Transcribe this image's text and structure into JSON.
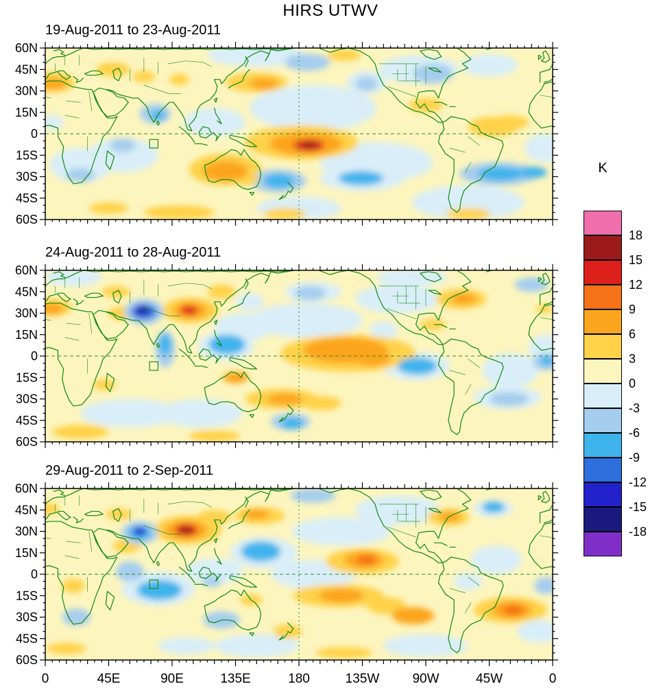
{
  "title": "HIRS UTWV",
  "panels": [
    {
      "subtitle": "19-Aug-2011 to 23-Aug-2011"
    },
    {
      "subtitle": "24-Aug-2011 to 28-Aug-2011"
    },
    {
      "subtitle": "29-Aug-2011 to 2-Sep-2011"
    }
  ],
  "axes": {
    "lat_labels": [
      "60N",
      "45N",
      "30N",
      "15N",
      "0",
      "15S",
      "30S",
      "45S",
      "60S"
    ],
    "lon_labels": [
      "0",
      "45E",
      "90E",
      "135E",
      "180",
      "135W",
      "90W",
      "45W",
      "0"
    ]
  },
  "colorbar": {
    "title": "K",
    "tick_labels": [
      "18",
      "15",
      "12",
      "9",
      "6",
      "3",
      "0",
      "-3",
      "-6",
      "-9",
      "-12",
      "-15",
      "-18"
    ],
    "colors_top_to_bottom": [
      "#F06EAC",
      "#9B1B1B",
      "#DC1F1A",
      "#F57219",
      "#FCA51F",
      "#FFD24A",
      "#FCF5BE",
      "#D9EEF8",
      "#A5CDEE",
      "#3FB4EC",
      "#2D6FDC",
      "#2222CC",
      "#1A1A7E",
      "#7F2FC8"
    ]
  },
  "chart_data": {
    "type": "heatmap",
    "title": "HIRS UTWV",
    "units": "K",
    "description": "Three 5-day mean global maps of HIRS upper-tropospheric water vapor brightness temperature anomaly (K), 60S-60N, longitude 0-360 starting at Greenwich, filled contours every 3 K from -18 to 18 with green coastlines, dashed equator and dateline reference lines, and a small outlined study box near 77E just south of the equator.",
    "lat_range": [
      -60,
      60
    ],
    "lon_range": [
      0,
      360
    ],
    "levels": [
      -18,
      -15,
      -12,
      -9,
      -6,
      -3,
      0,
      3,
      6,
      9,
      12,
      15,
      18
    ],
    "map_style": {
      "base_color": "#FCF5BE",
      "coastline_color": "#108910",
      "grid_line_color": "#2E8B2E",
      "frame_color": "#000000"
    },
    "panels": [
      {
        "subtitle": "19-Aug-2011 to 23-Aug-2011",
        "feature_note": "Strong positive anomaly (>12K) near 187E,8S; negative bands in S Pacific and S Atlantic near 30S; orange over Australia and NW Africa.",
        "anomaly_features": [
          [
            190,
            18,
            45,
            16,
            -2.5
          ],
          [
            235,
            -20,
            40,
            14,
            -2.5
          ],
          [
            300,
            -48,
            40,
            12,
            -2.5
          ],
          [
            150,
            55,
            35,
            8,
            -2.5
          ],
          [
            265,
            45,
            28,
            10,
            -2.5
          ],
          [
            315,
            48,
            20,
            8,
            -2.5
          ],
          [
            55,
            -15,
            25,
            12,
            -2.5
          ],
          [
            25,
            -22,
            22,
            12,
            -2.5
          ],
          [
            120,
            8,
            22,
            10,
            -2.5
          ],
          [
            355,
            -10,
            15,
            10,
            -2.5
          ],
          [
            180,
            -52,
            30,
            8,
            -2.5
          ],
          [
            5,
            36,
            16,
            7,
            4
          ],
          [
            6,
            35,
            9,
            4,
            7
          ],
          [
            48,
            45,
            12,
            5,
            4
          ],
          [
            70,
            40,
            8,
            4,
            5
          ],
          [
            95,
            38,
            7,
            4,
            4
          ],
          [
            150,
            36,
            22,
            7,
            4
          ],
          [
            155,
            35,
            10,
            4,
            7
          ],
          [
            182,
            -6,
            40,
            12,
            4
          ],
          [
            185,
            -7,
            26,
            8,
            8
          ],
          [
            187,
            -8,
            11,
            4,
            13
          ],
          [
            188,
            -8,
            6,
            2.5,
            16
          ],
          [
            128,
            -25,
            26,
            11,
            4
          ],
          [
            128,
            -26,
            16,
            7,
            7
          ],
          [
            142,
            -32,
            10,
            4,
            5
          ],
          [
            330,
            8,
            13,
            5,
            5
          ],
          [
            318,
            5,
            18,
            7,
            4
          ],
          [
            270,
            20,
            12,
            5,
            4
          ],
          [
            212,
            55,
            12,
            4,
            4
          ],
          [
            95,
            -55,
            25,
            5,
            5
          ],
          [
            170,
            -56,
            15,
            4,
            4
          ],
          [
            300,
            -56,
            16,
            4,
            4
          ],
          [
            45,
            -52,
            14,
            4,
            4
          ],
          [
            78,
            14,
            11,
            7,
            -4
          ],
          [
            80,
            13,
            5,
            3.5,
            -7
          ],
          [
            165,
            -33,
            20,
            8,
            -4
          ],
          [
            166,
            -33,
            11,
            5,
            -8
          ],
          [
            225,
            -31,
            30,
            9,
            -2.5
          ],
          [
            224,
            -31,
            16,
            5,
            -7
          ],
          [
            322,
            -28,
            28,
            8,
            -4
          ],
          [
            323,
            -28,
            16,
            5,
            -8
          ],
          [
            346,
            -27,
            10,
            4,
            -6.5
          ],
          [
            275,
            42,
            14,
            7,
            -4
          ],
          [
            228,
            36,
            14,
            8,
            -2.5
          ],
          [
            228,
            35,
            8,
            5,
            -5
          ],
          [
            186,
            50,
            16,
            6,
            -4
          ],
          [
            25,
            -29,
            10,
            5,
            -4
          ],
          [
            55,
            -8,
            9,
            5,
            -4
          ],
          [
            5,
            8,
            8,
            5,
            -2.5
          ]
        ]
      },
      {
        "subtitle": "24-Aug-2011 to 28-Aug-2011",
        "feature_note": "Strong dipole over S Asia: deep negative (<-15K) near 69E,32N and strong positive (>12K) near 102E,32N; orange band along equatorial central Pacific.",
        "anomaly_features": [
          [
            185,
            25,
            40,
            12,
            -2.5
          ],
          [
            330,
            -10,
            20,
            12,
            -2.5
          ],
          [
            60,
            -40,
            35,
            10,
            -2.5
          ],
          [
            110,
            -40,
            30,
            10,
            -2.5
          ],
          [
            140,
            20,
            20,
            10,
            -2.5
          ],
          [
            355,
            5,
            12,
            10,
            -2.5
          ],
          [
            260,
            55,
            25,
            6,
            -2.5
          ],
          [
            20,
            55,
            20,
            6,
            -2.5
          ],
          [
            250,
            40,
            30,
            10,
            -2.5
          ],
          [
            5,
            34,
            14,
            6,
            4
          ],
          [
            5,
            33,
            8,
            4,
            7
          ],
          [
            354,
            33,
            6,
            3,
            5
          ],
          [
            50,
            45,
            10,
            4,
            4
          ],
          [
            55,
            30,
            10,
            5,
            4
          ],
          [
            103,
            32,
            20,
            9,
            4
          ],
          [
            103,
            32,
            12,
            6,
            8
          ],
          [
            102,
            32,
            6,
            3.2,
            13
          ],
          [
            125,
            45,
            10,
            5,
            4
          ],
          [
            215,
            2,
            48,
            13,
            4
          ],
          [
            213,
            4,
            30,
            9,
            7
          ],
          [
            207,
            6,
            12,
            6,
            8
          ],
          [
            232,
            -1,
            13,
            6,
            8
          ],
          [
            168,
            -30,
            26,
            7,
            4
          ],
          [
            170,
            -30,
            13,
            4,
            7
          ],
          [
            196,
            -33,
            14,
            5,
            5
          ],
          [
            135,
            -15,
            9,
            4,
            7
          ],
          [
            42,
            -20,
            8,
            4,
            4
          ],
          [
            25,
            -53,
            20,
            5,
            5
          ],
          [
            120,
            -56,
            18,
            4,
            4
          ],
          [
            295,
            40,
            18,
            7,
            4
          ],
          [
            297,
            40,
            9,
            4,
            7
          ],
          [
            275,
            22,
            9,
            4,
            4
          ],
          [
            70,
            31,
            14,
            9,
            -4
          ],
          [
            70,
            31,
            9,
            5.5,
            -10
          ],
          [
            69,
            32,
            5,
            3,
            -14
          ],
          [
            69,
            32,
            3.2,
            2,
            -17
          ],
          [
            85,
            5,
            7,
            13,
            -4
          ],
          [
            85,
            8,
            4.5,
            7,
            -7
          ],
          [
            128,
            7,
            20,
            10,
            -2.5
          ],
          [
            129,
            8,
            13,
            7,
            -6.5
          ],
          [
            128,
            10,
            7,
            4,
            -8
          ],
          [
            263,
            -7,
            24,
            10,
            -2.5
          ],
          [
            264,
            -7,
            14,
            6,
            -6.5
          ],
          [
            328,
            -29,
            24,
            8,
            -2.5
          ],
          [
            329,
            -30,
            14,
            5,
            -5
          ],
          [
            174,
            -46,
            14,
            6,
            -4
          ],
          [
            175,
            -47,
            8,
            4,
            -7
          ],
          [
            190,
            45,
            20,
            7,
            -2.5
          ],
          [
            188,
            44,
            11,
            5,
            -5
          ],
          [
            355,
            -4,
            9,
            6,
            -4
          ],
          [
            356,
            -3,
            5,
            3.5,
            -6.5
          ],
          [
            145,
            38,
            10,
            6,
            -2.5
          ],
          [
            240,
            18,
            10,
            6,
            -2.5
          ],
          [
            345,
            50,
            12,
            5,
            -4
          ]
        ]
      },
      {
        "subtitle": "29-Aug-2011 to 2-Sep-2011",
        "feature_note": "Strong positive core (>15K) near 100E,31N with navy negative (<-12K) near 67E,30N; negative band in central Indian Ocean; orange bands in S Pacific and S Atlantic.",
        "anomaly_features": [
          [
            190,
            0,
            30,
            10,
            -2.5
          ],
          [
            120,
            2,
            20,
            9,
            -2.5
          ],
          [
            250,
            45,
            30,
            10,
            -2.5
          ],
          [
            320,
            10,
            18,
            10,
            -2.5
          ],
          [
            150,
            -50,
            30,
            8,
            -2.5
          ],
          [
            270,
            -50,
            30,
            8,
            -2.5
          ],
          [
            210,
            30,
            35,
            10,
            -2.5
          ],
          [
            350,
            -40,
            15,
            8,
            -2.5
          ],
          [
            101,
            31,
            24,
            10,
            4
          ],
          [
            100,
            31,
            15,
            7,
            8
          ],
          [
            100,
            31,
            8,
            4,
            13
          ],
          [
            100,
            31,
            4.5,
            2.5,
            16
          ],
          [
            120,
            40,
            12,
            5,
            4
          ],
          [
            152,
            41,
            18,
            6,
            5
          ],
          [
            150,
            42,
            9,
            3.5,
            7
          ],
          [
            225,
            9,
            26,
            9,
            4
          ],
          [
            226,
            10,
            14,
            6,
            7
          ],
          [
            228,
            10,
            7,
            3.5,
            10
          ],
          [
            208,
            -15,
            32,
            8,
            5
          ],
          [
            210,
            -15,
            16,
            5,
            8
          ],
          [
            242,
            -22,
            14,
            6,
            5
          ],
          [
            261,
            -29,
            15,
            6,
            7
          ],
          [
            330,
            -25,
            26,
            9,
            4
          ],
          [
            331,
            -25,
            14,
            6,
            7
          ],
          [
            332,
            -25,
            7,
            3.5,
            10
          ],
          [
            286,
            40,
            15,
            6,
            4
          ],
          [
            287,
            40,
            8,
            3.5,
            7
          ],
          [
            2,
            46,
            8,
            4,
            4
          ],
          [
            52,
            42,
            9,
            4,
            5
          ],
          [
            58,
            20,
            10,
            5,
            4
          ],
          [
            20,
            -8,
            8,
            5,
            4
          ],
          [
            146,
            -18,
            8,
            4,
            5
          ],
          [
            172,
            -40,
            10,
            5,
            4
          ],
          [
            212,
            -55,
            20,
            4,
            4
          ],
          [
            15,
            -52,
            14,
            4,
            5
          ],
          [
            67,
            29,
            13,
            8,
            -4
          ],
          [
            67,
            29,
            8,
            5,
            -8
          ],
          [
            67,
            30,
            4.5,
            3,
            -13
          ],
          [
            80,
            -10,
            26,
            12,
            -2.5
          ],
          [
            81,
            -11,
            16,
            7,
            -6.5
          ],
          [
            83,
            -10,
            9,
            4.5,
            -8
          ],
          [
            60,
            2,
            10,
            7,
            -4
          ],
          [
            155,
            15,
            24,
            11,
            -2.5
          ],
          [
            153,
            16,
            14,
            7,
            -6.5
          ],
          [
            150,
            18,
            8,
            4,
            -8
          ],
          [
            118,
            -5,
            7,
            4,
            -5
          ],
          [
            125,
            -32,
            13,
            6,
            -4
          ],
          [
            190,
            55,
            16,
            5,
            -4
          ],
          [
            245,
            40,
            12,
            6,
            -2.5
          ],
          [
            318,
            46,
            14,
            6,
            -2.5
          ],
          [
            318,
            47,
            8,
            4,
            -6.5
          ],
          [
            22,
            -30,
            10,
            6,
            -4
          ],
          [
            355,
            -8,
            8,
            6,
            -4
          ],
          [
            100,
            -50,
            20,
            6,
            -2.5
          ],
          [
            300,
            -5,
            10,
            6,
            -2.5
          ]
        ]
      }
    ]
  }
}
